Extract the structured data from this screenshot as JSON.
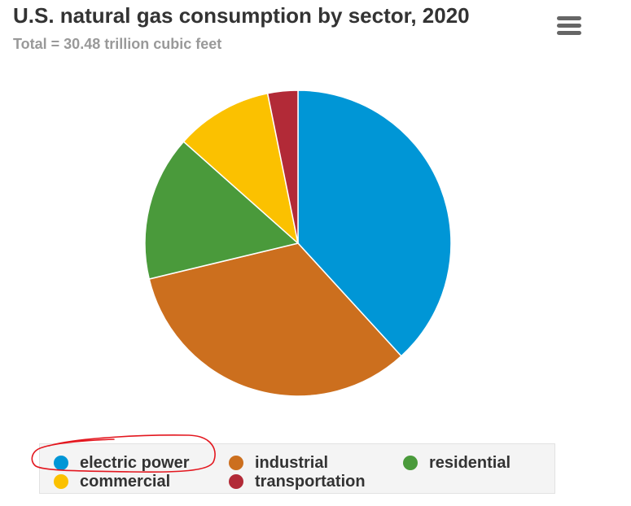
{
  "header": {
    "title": "U.S. natural gas consumption by sector, 2020",
    "subtitle": "Total = 30.48 trillion cubic feet"
  },
  "menu": {
    "icon": "hamburger-menu-icon"
  },
  "chart_data": {
    "type": "pie",
    "title": "U.S. natural gas consumption by sector, 2020",
    "subtitle": "Total = 30.48 trillion cubic feet",
    "categories": [
      "electric power",
      "industrial",
      "residential",
      "commercial",
      "transportation"
    ],
    "values": [
      38.4,
      33.2,
      15.4,
      10.3,
      3.2
    ],
    "slice_order": [
      "electric power",
      "industrial",
      "residential",
      "commercial",
      "transportation"
    ],
    "colors": [
      "#0096d6",
      "#cc6f1e",
      "#4a9a3b",
      "#fbc100",
      "#b22a37"
    ],
    "legend_placement": "bottom",
    "legend": [
      "electric power",
      "industrial",
      "residential",
      "commercial",
      "transportation"
    ]
  },
  "legend": {
    "items": [
      {
        "label": "electric power",
        "color": "#0096d6"
      },
      {
        "label": "industrial",
        "color": "#cc6f1e"
      },
      {
        "label": "residential",
        "color": "#4a9a3b"
      },
      {
        "label": "commercial",
        "color": "#fbc100"
      },
      {
        "label": "transportation",
        "color": "#b22a37"
      }
    ]
  },
  "annotation": {
    "color": "#e3171f",
    "target": "electric power"
  }
}
